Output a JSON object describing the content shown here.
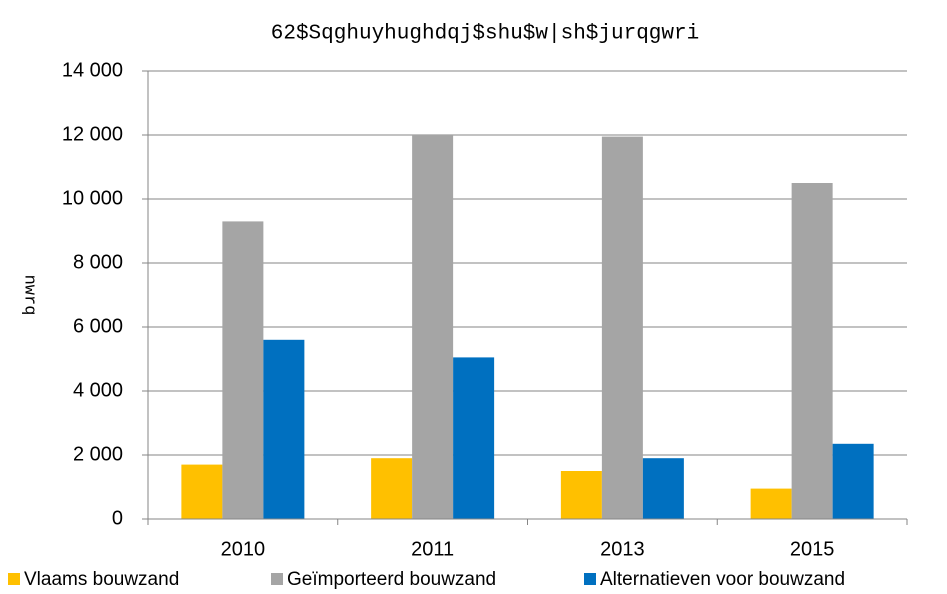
{
  "chart_data": {
    "type": "bar",
    "title": "62$Sqghuyhughdqj$shu$w|sh$jurqgwri",
    "y_label": "nwrq",
    "categories": [
      "2010",
      "2011",
      "2013",
      "2015"
    ],
    "series": [
      {
        "name": "Vlaams bouwzand",
        "color": "#FFC000",
        "values": [
          1700,
          1900,
          1500,
          950
        ]
      },
      {
        "name": "Geïmporteerd bouwzand",
        "color": "#A5A5A5",
        "values": [
          9300,
          12000,
          11950,
          10500
        ]
      },
      {
        "name": "Alternatieven voor bouwzand",
        "color": "#0070C0",
        "values": [
          5600,
          5050,
          1900,
          2350
        ]
      }
    ],
    "ylim": [
      0,
      14000
    ],
    "yticks": [
      0,
      {
        "value": 2000,
        "label": "2 000"
      },
      {
        "value": 4000,
        "label": "4 000"
      },
      {
        "value": 6000,
        "label": "6 000"
      },
      {
        "value": 8000,
        "label": "8 000"
      },
      {
        "value": 10000,
        "label": "10 000"
      },
      {
        "value": 12000,
        "label": "12 000"
      },
      {
        "value": 14000,
        "label": "14 000"
      }
    ],
    "grid": true,
    "legend": "bottom"
  }
}
